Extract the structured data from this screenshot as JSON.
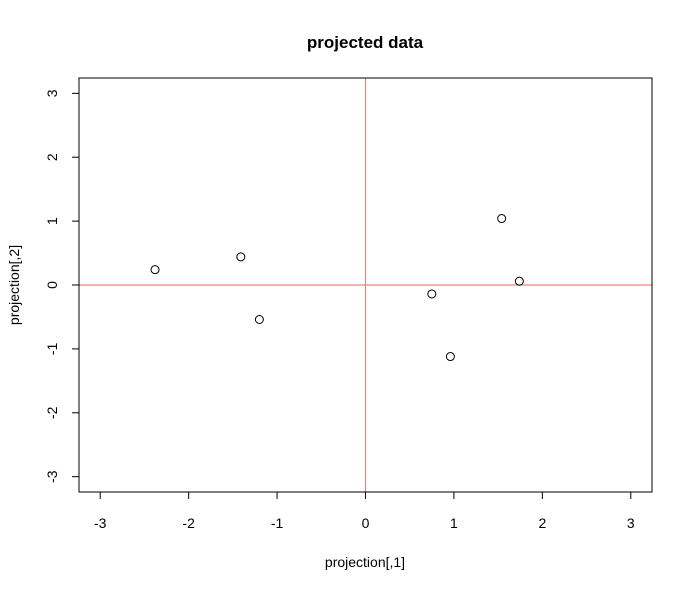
{
  "chart_data": {
    "type": "scatter",
    "title": "projected data",
    "xlabel": "projection[,1]",
    "ylabel": "projection[,2]",
    "xlim": [
      -3.24,
      3.24
    ],
    "ylim": [
      -3.24,
      3.24
    ],
    "xticks": [
      -3,
      -2,
      -1,
      0,
      1,
      2,
      3
    ],
    "yticks": [
      -3,
      -2,
      -1,
      0,
      1,
      2,
      3
    ],
    "grid": false,
    "legend": "none",
    "points": [
      {
        "x": -2.38,
        "y": 0.24
      },
      {
        "x": -1.41,
        "y": 0.44
      },
      {
        "x": -1.2,
        "y": -0.54
      },
      {
        "x": 0.75,
        "y": -0.14
      },
      {
        "x": 0.96,
        "y": -1.12
      },
      {
        "x": 1.54,
        "y": 1.04
      },
      {
        "x": 1.74,
        "y": 0.06
      }
    ],
    "reference_lines": {
      "vertical_x": 0,
      "horizontal_y": 0,
      "color": "#f08080"
    },
    "point_color": "#000000",
    "frame_color": "#000000"
  }
}
